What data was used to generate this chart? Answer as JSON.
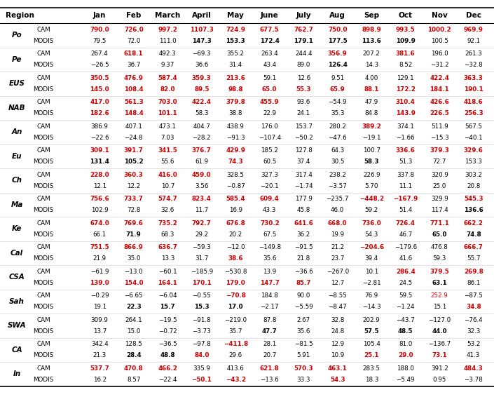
{
  "regions": [
    "Po",
    "Pe",
    "EUS",
    "NAB",
    "An",
    "Eu",
    "Ch",
    "Ma",
    "Ke",
    "Cal",
    "CSA",
    "Sah",
    "SWA",
    "CA",
    "In"
  ],
  "columns": [
    "Jan",
    "Feb",
    "March",
    "April",
    "May",
    "June",
    "July",
    "Aug",
    "Sep",
    "Oct",
    "Nov",
    "Dec"
  ],
  "data": {
    "Po": {
      "CAM": [
        "790.0",
        "726.0",
        "997.2",
        "1107.3",
        "724.9",
        "677.5",
        "762.7",
        "750.0",
        "898.9",
        "993.5",
        "1000.2",
        "969.9"
      ],
      "MODIS": [
        "79.5",
        "72.0",
        "111.0",
        "147.3",
        "153.3",
        "172.4",
        "179.1",
        "177.5",
        "113.6",
        "109.9",
        "100.5",
        "92.1"
      ]
    },
    "Pe": {
      "CAM": [
        "267.4",
        "618.1",
        "492.3",
        "−69.3",
        "355.2",
        "263.4",
        "244.4",
        "356.9",
        "207.2",
        "381.6",
        "196.0",
        "261.3"
      ],
      "MODIS": [
        "−26.5",
        "36.7",
        "9.37",
        "36.6",
        "31.4",
        "43.4",
        "89.0",
        "126.4",
        "14.3",
        "8.52",
        "−31.2",
        "−32.8"
      ]
    },
    "EUS": {
      "CAM": [
        "350.5",
        "476.9",
        "587.4",
        "359.3",
        "213.6",
        "59.1",
        "12.6",
        "9.51",
        "4.00",
        "129.1",
        "422.4",
        "363.3"
      ],
      "MODIS": [
        "145.0",
        "108.4",
        "82.0",
        "89.5",
        "98.8",
        "65.0",
        "55.3",
        "65.9",
        "88.1",
        "172.2",
        "184.1",
        "190.1"
      ]
    },
    "NAB": {
      "CAM": [
        "417.0",
        "561.3",
        "703.0",
        "422.4",
        "379.8",
        "455.9",
        "93.6",
        "−54.9",
        "47.9",
        "310.4",
        "426.6",
        "418.6"
      ],
      "MODIS": [
        "182.6",
        "148.4",
        "101.1",
        "58.3",
        "38.8",
        "22.9",
        "24.1",
        "35.3",
        "84.8",
        "143.9",
        "226.5",
        "256.3"
      ]
    },
    "An": {
      "CAM": [
        "386.9",
        "407.1",
        "473.1",
        "404.7",
        "438.9",
        "176.0",
        "153.7",
        "280.2",
        "389.2",
        "374.1",
        "511.9",
        "567.5"
      ],
      "MODIS": [
        "−22.6",
        "−24.8",
        "7.03",
        "−28.2",
        "−91.3",
        "−107.4",
        "−50.2",
        "−47.6",
        "−19.1",
        "−1.66",
        "−15.3",
        "−40.1"
      ]
    },
    "Eu": {
      "CAM": [
        "309.1",
        "391.7",
        "341.5",
        "376.7",
        "429.9",
        "185.2",
        "127.8",
        "64.3",
        "100.7",
        "336.6",
        "379.3",
        "329.6"
      ],
      "MODIS": [
        "131.4",
        "105.2",
        "55.6",
        "61.9",
        "74.3",
        "60.5",
        "37.4",
        "30.5",
        "58.3",
        "51.3",
        "72.7",
        "153.3"
      ]
    },
    "Ch": {
      "CAM": [
        "228.0",
        "360.3",
        "416.0",
        "459.0",
        "328.5",
        "327.3",
        "317.4",
        "238.2",
        "226.9",
        "337.8",
        "320.9",
        "303.2"
      ],
      "MODIS": [
        "12.1",
        "12.2",
        "10.7",
        "3.56",
        "−0.87",
        "−20.1",
        "−1.74",
        "−3.57",
        "5.70",
        "11.1",
        "25.0",
        "20.8"
      ]
    },
    "Ma": {
      "CAM": [
        "756.6",
        "733.7",
        "574.7",
        "823.4",
        "585.4",
        "609.4",
        "177.9",
        "−235.7",
        "−448.2",
        "−167.9",
        "329.9",
        "545.3"
      ],
      "MODIS": [
        "102.9",
        "72.8",
        "32.6",
        "11.7",
        "16.9",
        "43.3",
        "45.8",
        "46.0",
        "59.2",
        "51.4",
        "117.4",
        "136.6"
      ]
    },
    "Ke": {
      "CAM": [
        "674.0",
        "769.6",
        "735.2",
        "792.7",
        "676.8",
        "730.2",
        "641.6",
        "668.0",
        "736.0",
        "726.4",
        "771.1",
        "662.2"
      ],
      "MODIS": [
        "66.1",
        "71.9",
        "68.3",
        "29.2",
        "20.2",
        "67.5",
        "36.2",
        "19.9",
        "54.3",
        "46.7",
        "65.0",
        "74.8"
      ]
    },
    "Cal": {
      "CAM": [
        "751.5",
        "866.9",
        "636.7",
        "−59.3",
        "−12.0",
        "−149.8",
        "−91.5",
        "21.2",
        "−204.6",
        "−179.6",
        "476.8",
        "666.7"
      ],
      "MODIS": [
        "21.9",
        "35.0",
        "13.3",
        "31.7",
        "38.6",
        "35.6",
        "21.8",
        "23.7",
        "39.4",
        "41.6",
        "59.3",
        "55.7"
      ]
    },
    "CSA": {
      "CAM": [
        "−61.9",
        "−13.0",
        "−60.1",
        "−185.9",
        "−530.8",
        "13.9",
        "−36.6",
        "−267.0",
        "10.1",
        "286.4",
        "379.5",
        "269.8"
      ],
      "MODIS": [
        "139.0",
        "154.0",
        "164.1",
        "170.1",
        "179.0",
        "147.7",
        "85.7",
        "12.7",
        "−2.81",
        "24.5",
        "63.1",
        "86.1"
      ]
    },
    "Sah": {
      "CAM": [
        "−0.29",
        "−6.65",
        "−6.04",
        "−0.55",
        "−70.8",
        "184.8",
        "90.0",
        "−8.55",
        "76.9",
        "59.5",
        "252.9",
        "−87.5"
      ],
      "MODIS": [
        "19.1",
        "22.3",
        "15.7",
        "15.3",
        "17.0",
        "−2.17",
        "−5.59",
        "−8.47",
        "−14.3",
        "−1.24",
        "15.1",
        "34.8"
      ]
    },
    "SWA": {
      "CAM": [
        "309.9",
        "264.1",
        "−19.5",
        "−91.8",
        "−219.0",
        "87.8",
        "2.67",
        "32.8",
        "202.9",
        "−43.7",
        "−127.0",
        "−76.4"
      ],
      "MODIS": [
        "13.7",
        "15.0",
        "−0.72",
        "−3.73",
        "35.7",
        "47.7",
        "35.6",
        "24.8",
        "57.5",
        "48.5",
        "44.0",
        "32.3"
      ]
    },
    "CA": {
      "CAM": [
        "342.4",
        "128.5",
        "−36.5",
        "−97.8",
        "−411.8",
        "28.1",
        "−81.5",
        "12.9",
        "105.4",
        "81.0",
        "−136.7",
        "53.2"
      ],
      "MODIS": [
        "21.3",
        "28.4",
        "48.8",
        "84.0",
        "29.6",
        "20.7",
        "5.91",
        "10.9",
        "25.1",
        "29.0",
        "73.1",
        "41.3"
      ]
    },
    "In": {
      "CAM": [
        "537.7",
        "470.8",
        "466.2",
        "335.9",
        "413.6",
        "621.8",
        "570.3",
        "463.1",
        "283.5",
        "188.0",
        "391.2",
        "484.3"
      ],
      "MODIS": [
        "16.2",
        "8.57",
        "−22.4",
        "−50.1",
        "−43.2",
        "−13.6",
        "33.3",
        "54.3",
        "18.3",
        "−5.49",
        "0.95",
        "−3.78"
      ]
    }
  },
  "bold_CAM": {
    "Po": [
      true,
      true,
      true,
      true,
      true,
      true,
      true,
      true,
      true,
      true,
      true,
      true
    ],
    "Pe": [
      false,
      true,
      false,
      false,
      false,
      false,
      false,
      true,
      false,
      true,
      false,
      false
    ],
    "EUS": [
      true,
      true,
      true,
      true,
      true,
      false,
      false,
      false,
      false,
      false,
      true,
      true
    ],
    "NAB": [
      true,
      true,
      true,
      true,
      true,
      true,
      false,
      false,
      false,
      true,
      true,
      true
    ],
    "An": [
      false,
      false,
      false,
      false,
      false,
      false,
      false,
      false,
      true,
      false,
      false,
      false
    ],
    "Eu": [
      true,
      true,
      true,
      true,
      true,
      false,
      false,
      false,
      false,
      true,
      true,
      true
    ],
    "Ch": [
      true,
      true,
      true,
      true,
      false,
      false,
      false,
      false,
      false,
      false,
      false,
      false
    ],
    "Ma": [
      true,
      true,
      true,
      true,
      true,
      true,
      false,
      false,
      true,
      true,
      false,
      true
    ],
    "Ke": [
      true,
      true,
      true,
      true,
      true,
      true,
      true,
      true,
      true,
      true,
      true,
      true
    ],
    "Cal": [
      true,
      true,
      true,
      false,
      false,
      false,
      false,
      false,
      true,
      false,
      false,
      true
    ],
    "CSA": [
      false,
      false,
      false,
      false,
      false,
      false,
      false,
      false,
      false,
      true,
      true,
      true
    ],
    "Sah": [
      false,
      false,
      false,
      false,
      true,
      false,
      false,
      false,
      false,
      false,
      false,
      false
    ],
    "SWA": [
      false,
      false,
      false,
      false,
      false,
      false,
      false,
      false,
      false,
      false,
      false,
      false
    ],
    "CA": [
      false,
      false,
      false,
      false,
      true,
      false,
      false,
      false,
      false,
      false,
      false,
      false
    ],
    "In": [
      true,
      true,
      true,
      false,
      false,
      true,
      true,
      true,
      false,
      false,
      false,
      true
    ]
  },
  "bold_MODIS": {
    "Po": [
      false,
      false,
      false,
      true,
      true,
      true,
      true,
      true,
      true,
      true,
      false,
      false
    ],
    "Pe": [
      false,
      false,
      false,
      false,
      false,
      false,
      false,
      true,
      false,
      false,
      false,
      false
    ],
    "EUS": [
      true,
      true,
      true,
      true,
      true,
      true,
      true,
      true,
      true,
      true,
      true,
      true
    ],
    "NAB": [
      true,
      true,
      true,
      false,
      false,
      false,
      false,
      false,
      false,
      true,
      true,
      true
    ],
    "An": [
      false,
      false,
      false,
      false,
      false,
      false,
      false,
      false,
      false,
      false,
      false,
      false
    ],
    "Eu": [
      true,
      true,
      false,
      false,
      true,
      false,
      false,
      false,
      true,
      false,
      false,
      false
    ],
    "Ch": [
      false,
      false,
      false,
      false,
      false,
      false,
      false,
      false,
      false,
      false,
      false,
      false
    ],
    "Ma": [
      false,
      false,
      false,
      false,
      false,
      false,
      false,
      false,
      false,
      false,
      false,
      true
    ],
    "Ke": [
      false,
      true,
      false,
      false,
      false,
      false,
      false,
      false,
      false,
      false,
      true,
      true
    ],
    "Cal": [
      false,
      false,
      false,
      false,
      true,
      false,
      false,
      false,
      false,
      false,
      false,
      false
    ],
    "CSA": [
      true,
      true,
      true,
      true,
      true,
      true,
      true,
      false,
      false,
      false,
      true,
      false
    ],
    "Sah": [
      false,
      true,
      true,
      true,
      true,
      false,
      false,
      false,
      false,
      false,
      false,
      true
    ],
    "SWA": [
      false,
      false,
      false,
      false,
      false,
      true,
      false,
      false,
      true,
      true,
      true,
      false
    ],
    "CA": [
      false,
      true,
      true,
      true,
      false,
      false,
      false,
      false,
      true,
      true,
      true,
      false
    ],
    "In": [
      false,
      false,
      false,
      true,
      true,
      false,
      false,
      true,
      false,
      false,
      false,
      false
    ]
  },
  "red_CAM": {
    "Po": [
      true,
      true,
      true,
      true,
      true,
      true,
      true,
      true,
      true,
      true,
      true,
      true
    ],
    "Pe": [
      false,
      true,
      false,
      false,
      false,
      false,
      false,
      true,
      false,
      true,
      false,
      false
    ],
    "EUS": [
      true,
      true,
      true,
      true,
      true,
      false,
      false,
      false,
      false,
      false,
      true,
      true
    ],
    "NAB": [
      true,
      true,
      true,
      true,
      true,
      true,
      false,
      false,
      false,
      true,
      true,
      true
    ],
    "An": [
      false,
      false,
      false,
      false,
      false,
      false,
      false,
      false,
      true,
      false,
      false,
      false
    ],
    "Eu": [
      true,
      true,
      true,
      true,
      true,
      false,
      false,
      false,
      false,
      true,
      true,
      true
    ],
    "Ch": [
      true,
      true,
      true,
      true,
      false,
      false,
      false,
      false,
      false,
      false,
      false,
      false
    ],
    "Ma": [
      true,
      true,
      true,
      true,
      true,
      true,
      false,
      false,
      true,
      true,
      false,
      true
    ],
    "Ke": [
      true,
      true,
      true,
      true,
      true,
      true,
      true,
      true,
      true,
      true,
      true,
      true
    ],
    "Cal": [
      true,
      true,
      true,
      false,
      false,
      false,
      false,
      false,
      true,
      false,
      false,
      true
    ],
    "CSA": [
      false,
      false,
      false,
      false,
      false,
      false,
      false,
      false,
      false,
      true,
      true,
      true
    ],
    "Sah": [
      false,
      false,
      false,
      false,
      true,
      false,
      false,
      false,
      false,
      false,
      true,
      false
    ],
    "SWA": [
      false,
      false,
      false,
      false,
      false,
      false,
      false,
      false,
      false,
      false,
      false,
      false
    ],
    "CA": [
      false,
      false,
      false,
      false,
      true,
      false,
      false,
      false,
      false,
      false,
      false,
      false
    ],
    "In": [
      true,
      true,
      true,
      false,
      false,
      true,
      true,
      true,
      false,
      false,
      false,
      true
    ]
  },
  "red_MODIS": {
    "Po": [
      false,
      false,
      false,
      false,
      false,
      false,
      false,
      false,
      false,
      false,
      false,
      false
    ],
    "Pe": [
      false,
      false,
      false,
      false,
      false,
      false,
      false,
      false,
      false,
      false,
      false,
      false
    ],
    "EUS": [
      true,
      true,
      true,
      true,
      true,
      true,
      true,
      true,
      true,
      true,
      true,
      true
    ],
    "NAB": [
      true,
      true,
      true,
      false,
      false,
      false,
      false,
      false,
      false,
      true,
      true,
      true
    ],
    "An": [
      false,
      false,
      false,
      false,
      false,
      false,
      false,
      false,
      false,
      false,
      false,
      false
    ],
    "Eu": [
      false,
      false,
      false,
      false,
      true,
      false,
      false,
      false,
      false,
      false,
      false,
      false
    ],
    "Ch": [
      false,
      false,
      false,
      false,
      false,
      false,
      false,
      false,
      false,
      false,
      false,
      false
    ],
    "Ma": [
      false,
      false,
      false,
      false,
      false,
      false,
      false,
      false,
      false,
      false,
      false,
      false
    ],
    "Ke": [
      false,
      false,
      false,
      false,
      false,
      false,
      false,
      false,
      false,
      false,
      false,
      false
    ],
    "Cal": [
      false,
      false,
      false,
      false,
      true,
      false,
      false,
      false,
      false,
      false,
      false,
      false
    ],
    "CSA": [
      true,
      true,
      true,
      true,
      true,
      true,
      true,
      false,
      false,
      false,
      false,
      false
    ],
    "Sah": [
      false,
      false,
      false,
      false,
      false,
      false,
      false,
      false,
      false,
      false,
      false,
      true
    ],
    "SWA": [
      false,
      false,
      false,
      false,
      false,
      false,
      false,
      false,
      false,
      false,
      false,
      false
    ],
    "CA": [
      false,
      false,
      false,
      true,
      false,
      false,
      false,
      false,
      true,
      true,
      true,
      false
    ],
    "In": [
      false,
      false,
      false,
      true,
      true,
      false,
      false,
      true,
      false,
      false,
      false,
      false
    ]
  }
}
